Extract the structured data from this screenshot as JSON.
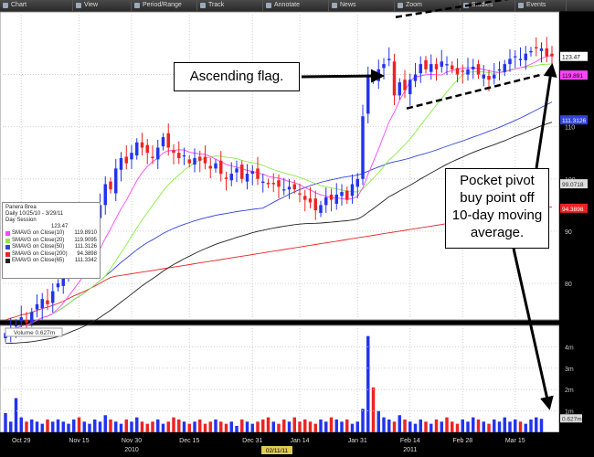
{
  "toolbar": {
    "items": [
      {
        "label": "Chart",
        "icon": "chart-icon",
        "w": 80
      },
      {
        "label": "View",
        "icon": "view-icon",
        "w": 64
      },
      {
        "label": "Period/Range",
        "icon": "period-icon",
        "w": 72
      },
      {
        "label": "Track",
        "icon": "track-icon",
        "w": 72
      },
      {
        "label": "Annotate",
        "icon": "annotate-icon",
        "w": 72
      },
      {
        "label": "News",
        "icon": "news-icon",
        "w": 72
      },
      {
        "label": "Zoom",
        "icon": "zoom-icon",
        "w": 72
      },
      {
        "label": "Studies",
        "icon": "studies-icon",
        "w": 60
      },
      {
        "label": "Events",
        "icon": "events-icon",
        "w": 56
      }
    ]
  },
  "callouts": {
    "flag": "Ascending flag.",
    "pivot": [
      "Pocket pivot",
      "buy point off",
      "10-day moving",
      "average."
    ]
  },
  "legend": {
    "title": "Panera Brea",
    "subtitle": "Daily 10/25/10 - 3/29/11",
    "session": "Day Session",
    "last": "123.47",
    "rows": [
      {
        "name": "SMAVG on Close(10)",
        "value": "119.8910",
        "color": "#ff44ff"
      },
      {
        "name": "SMAVG on Close(20)",
        "value": "119.9095",
        "color": "#88ee44"
      },
      {
        "name": "SMAVG on Close(50)",
        "value": "111.3126",
        "color": "#3344dd"
      },
      {
        "name": "SMAVG on Close(200)",
        "value": "94.3898",
        "color": "#ee2222"
      },
      {
        "name": "EMAVG on Close(65)",
        "value": "111.3342",
        "color": "#222222"
      }
    ]
  },
  "price_tags": [
    {
      "text": "123.47",
      "value": 123.47,
      "bg": "#ffffff",
      "fg": "#000000"
    },
    {
      "text": "119.891",
      "value": 119.891,
      "bg": "#ff44ff",
      "fg": "#000000"
    },
    {
      "text": "111.3126",
      "value": 111.3126,
      "bg": "#3344dd",
      "fg": "#ffffff"
    },
    {
      "text": "99.0718",
      "value": 99.0718,
      "bg": "#dddddd",
      "fg": "#333333"
    },
    {
      "text": "94.3898",
      "value": 94.3898,
      "bg": "#ee2222",
      "fg": "#ffffff"
    }
  ],
  "volume_label": "Volume 0.627m",
  "volume_tag": "0.627m",
  "x_date_labels": [
    {
      "text": "Oct 29",
      "index": 3
    },
    {
      "text": "Nov 15",
      "index": 14
    },
    {
      "text": "Nov 30",
      "index": 24
    },
    {
      "text": "Dec 15",
      "index": 35
    },
    {
      "text": "Dec 31",
      "index": 47
    },
    {
      "text": "Jan 14",
      "index": 56
    },
    {
      "text": "Jan 31",
      "index": 67
    },
    {
      "text": "Feb 14",
      "index": 77
    },
    {
      "text": "Feb 28",
      "index": 87
    },
    {
      "text": "Mar 15",
      "index": 97
    }
  ],
  "x_year_labels": [
    {
      "text": "2010",
      "index": 24
    },
    {
      "text": "2011",
      "index": 77
    }
  ],
  "cursor_date": "02/11/11",
  "chart_data": {
    "type": "candlestick",
    "y_axis": {
      "range": [
        73,
        132
      ],
      "ticks": [
        80,
        90,
        100,
        110,
        120
      ]
    },
    "volume_axis": {
      "range": [
        0,
        5
      ],
      "unit": "m",
      "ticks": [
        "1m",
        "2m",
        "3m",
        "4m"
      ]
    },
    "closes": [
      70.5,
      71.5,
      72,
      73.5,
      72.5,
      74.5,
      76,
      77,
      76,
      78.5,
      80,
      82.5,
      85,
      87,
      86,
      88,
      91,
      93,
      95,
      99,
      98,
      102,
      104,
      103,
      105,
      107,
      106,
      105,
      104,
      106,
      108,
      106,
      105,
      104,
      104.5,
      103,
      104,
      103.5,
      103,
      102,
      103,
      101,
      100,
      101,
      102,
      100,
      101,
      101.5,
      100,
      99.5,
      99,
      99,
      98.5,
      98,
      98.5,
      98,
      97,
      96,
      95.5,
      94,
      95,
      96.5,
      96,
      97,
      97.5,
      96,
      99,
      100,
      112,
      120,
      119,
      121,
      122,
      123,
      116,
      118.5,
      117,
      119,
      120,
      122,
      121,
      122,
      121,
      122.5,
      122,
      121,
      120,
      120.5,
      121,
      121.5,
      120,
      120,
      119,
      120,
      121,
      122,
      123,
      123.5,
      123,
      124,
      124.5,
      125,
      125,
      123.5,
      123.47
    ],
    "volumes_m": [
      0.9,
      0.5,
      1.6,
      0.7,
      0.5,
      0.6,
      0.5,
      0.4,
      0.6,
      0.5,
      0.6,
      0.5,
      0.4,
      0.6,
      0.7,
      0.5,
      0.4,
      0.6,
      0.5,
      0.8,
      0.6,
      0.5,
      0.4,
      0.6,
      0.5,
      0.7,
      0.5,
      0.4,
      0.5,
      0.6,
      0.4,
      0.5,
      0.7,
      0.6,
      0.5,
      0.4,
      0.5,
      0.6,
      0.4,
      0.5,
      0.6,
      0.5,
      0.4,
      0.5,
      0.3,
      0.6,
      0.5,
      0.4,
      0.5,
      0.6,
      0.7,
      0.5,
      0.4,
      0.6,
      0.5,
      0.7,
      0.5,
      0.6,
      0.5,
      0.4,
      0.6,
      0.5,
      0.7,
      0.6,
      0.5,
      0.6,
      0.4,
      0.5,
      1.1,
      4.5,
      2.1,
      1.0,
      0.7,
      0.6,
      0.5,
      0.8,
      0.6,
      0.5,
      0.4,
      0.6,
      0.5,
      0.4,
      0.6,
      0.5,
      0.7,
      0.5,
      0.4,
      0.6,
      0.5,
      0.7,
      0.6,
      0.5,
      0.4,
      0.6,
      0.5,
      0.7,
      0.5,
      0.6,
      0.5,
      0.4,
      0.6,
      0.7,
      0.63
    ]
  },
  "colors": {
    "up": "#2233ee",
    "down": "#ee2222",
    "flag_lines": "#000000",
    "background": "#ffffff"
  }
}
